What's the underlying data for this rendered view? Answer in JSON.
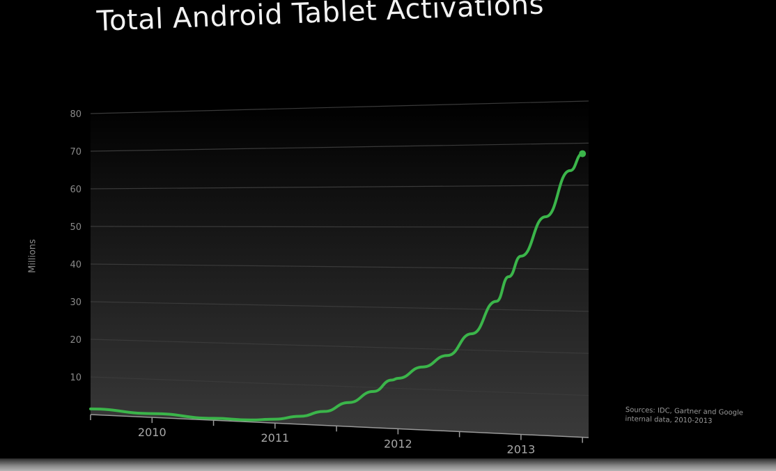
{
  "chart_data": {
    "type": "line",
    "title": "Total Android Tablet Activations",
    "ylabel": "Millions",
    "xlabel": "",
    "ylim": [
      0,
      80
    ],
    "yticks": [
      "80",
      "70",
      "60",
      "50",
      "40",
      "30",
      "20",
      "10"
    ],
    "xtick_labels": [
      "2010",
      "2011",
      "2012",
      "2013"
    ],
    "grid": true,
    "line_color": "#3bb54a",
    "series": [
      {
        "x": [
          2009.5,
          2010.0,
          2010.5,
          2010.8,
          2011.0,
          2011.2,
          2011.4,
          2011.6,
          2011.8,
          2011.95,
          2012.0,
          2012.2,
          2012.4,
          2012.6,
          2012.8,
          2012.9,
          2013.0,
          2013.2,
          2013.4,
          2013.5
        ],
        "values": [
          1.5,
          1.0,
          0.5,
          0.5,
          1.0,
          2.0,
          3.5,
          6.0,
          9.0,
          12.0,
          12.5,
          15.5,
          18.5,
          24.0,
          32.0,
          38.0,
          43.0,
          52.5,
          63.5,
          67.5
        ]
      }
    ],
    "source_note": "Sources: IDC, Gartner and Google internal data, 2010-2013"
  }
}
